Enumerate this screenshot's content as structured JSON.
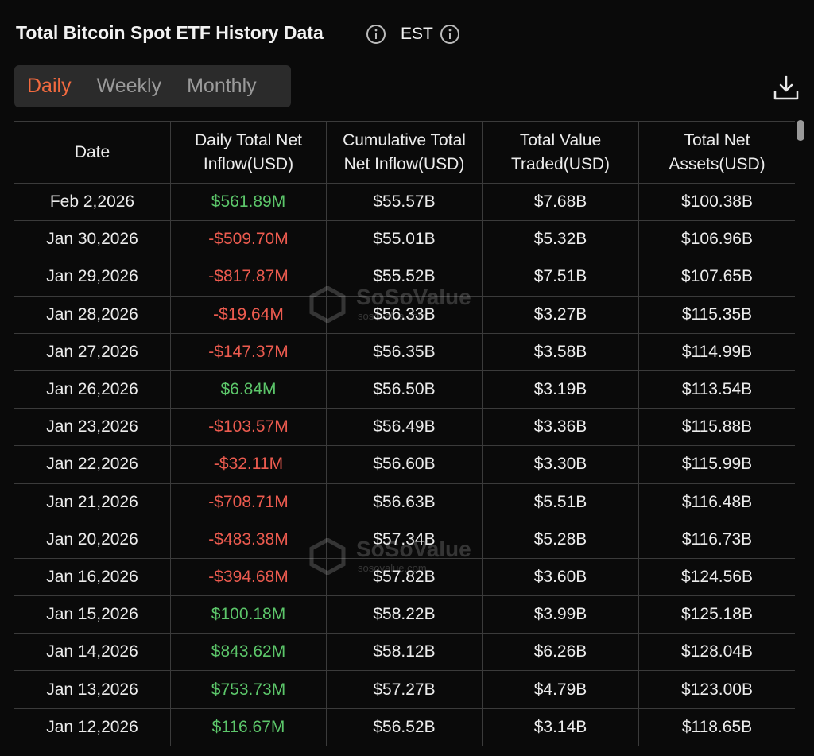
{
  "header": {
    "title": "Total Bitcoin Spot ETF History Data",
    "timezone": "EST"
  },
  "tabs": {
    "items": [
      "Daily",
      "Weekly",
      "Monthly"
    ],
    "active": 0
  },
  "watermark": {
    "name": "SoSoValue",
    "site": "sosovalue.com"
  },
  "table": {
    "positive_color": "#5cc66a",
    "negative_color": "#ec5b4f",
    "columns": [
      "Date",
      "Daily Total Net Inflow(USD)",
      "Cumulative Total Net Inflow(USD)",
      "Total Value Traded(USD)",
      "Total Net Assets(USD)"
    ],
    "rows": [
      [
        "Feb 2,2026",
        "$561.89M",
        "$55.57B",
        "$7.68B",
        "$100.38B"
      ],
      [
        "Jan 30,2026",
        "-$509.70M",
        "$55.01B",
        "$5.32B",
        "$106.96B"
      ],
      [
        "Jan 29,2026",
        "-$817.87M",
        "$55.52B",
        "$7.51B",
        "$107.65B"
      ],
      [
        "Jan 28,2026",
        "-$19.64M",
        "$56.33B",
        "$3.27B",
        "$115.35B"
      ],
      [
        "Jan 27,2026",
        "-$147.37M",
        "$56.35B",
        "$3.58B",
        "$114.99B"
      ],
      [
        "Jan 26,2026",
        "$6.84M",
        "$56.50B",
        "$3.19B",
        "$113.54B"
      ],
      [
        "Jan 23,2026",
        "-$103.57M",
        "$56.49B",
        "$3.36B",
        "$115.88B"
      ],
      [
        "Jan 22,2026",
        "-$32.11M",
        "$56.60B",
        "$3.30B",
        "$115.99B"
      ],
      [
        "Jan 21,2026",
        "-$708.71M",
        "$56.63B",
        "$5.51B",
        "$116.48B"
      ],
      [
        "Jan 20,2026",
        "-$483.38M",
        "$57.34B",
        "$5.28B",
        "$116.73B"
      ],
      [
        "Jan 16,2026",
        "-$394.68M",
        "$57.82B",
        "$3.60B",
        "$124.56B"
      ],
      [
        "Jan 15,2026",
        "$100.18M",
        "$58.22B",
        "$3.99B",
        "$125.18B"
      ],
      [
        "Jan 14,2026",
        "$843.62M",
        "$58.12B",
        "$6.26B",
        "$128.04B"
      ],
      [
        "Jan 13,2026",
        "$753.73M",
        "$57.27B",
        "$4.79B",
        "$123.00B"
      ],
      [
        "Jan 12,2026",
        "$116.67M",
        "$56.52B",
        "$3.14B",
        "$118.65B"
      ]
    ]
  }
}
